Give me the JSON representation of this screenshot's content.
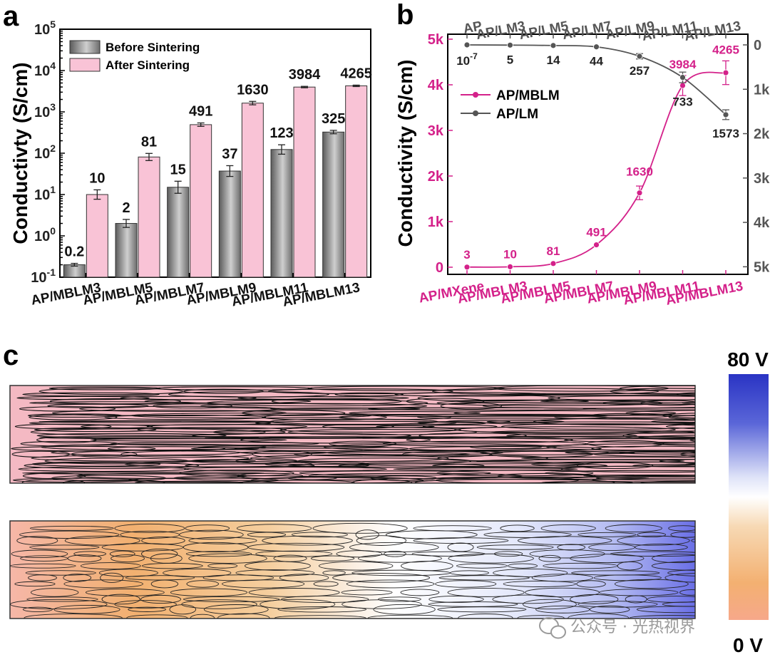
{
  "panels": {
    "a": "a",
    "b": "b",
    "c": "c"
  },
  "chart_data": [
    {
      "panel": "a",
      "type": "bar",
      "yscale": "log",
      "ylabel": "Conductivty (S/cm)",
      "ylim": [
        0.1,
        100000
      ],
      "yticks": [
        {
          "value": 0.1,
          "base": "10",
          "exp": "-1"
        },
        {
          "value": 1,
          "base": "10",
          "exp": "0"
        },
        {
          "value": 10,
          "base": "10",
          "exp": "1"
        },
        {
          "value": 100,
          "base": "10",
          "exp": "2"
        },
        {
          "value": 1000,
          "base": "10",
          "exp": "3"
        },
        {
          "value": 10000,
          "base": "10",
          "exp": "4"
        },
        {
          "value": 100000,
          "base": "10",
          "exp": "5"
        }
      ],
      "categories": [
        "AP/MBLM3",
        "AP/MBLM5",
        "AP/MBLM7",
        "AP/MBLM9",
        "AP/MBLM11",
        "AP/MBLM13"
      ],
      "series": [
        {
          "name": "Before Sintering",
          "color": "#8a8a8a",
          "values": [
            0.2,
            2,
            15,
            37,
            123,
            325
          ],
          "labels": [
            "0.2",
            "2",
            "15",
            "37",
            "123",
            "325"
          ],
          "err_factor": [
            1.08,
            1.25,
            1.4,
            1.35,
            1.3,
            1.1
          ]
        },
        {
          "name": "After Sintering",
          "color": "#f9c3d6",
          "values": [
            10,
            81,
            491,
            1630,
            3984,
            4265
          ],
          "labels": [
            "10",
            "81",
            "491",
            "1630",
            "3984",
            "4265"
          ],
          "err_factor": [
            1.3,
            1.22,
            1.1,
            1.1,
            1.04,
            1.04
          ]
        }
      ],
      "legend_position": "top-left"
    },
    {
      "panel": "b",
      "type": "line",
      "ylabel": "Conductivity (S/cm)",
      "left_axis": {
        "range": [
          0,
          5000
        ],
        "ticks": [
          "0",
          "1k",
          "2k",
          "3k",
          "4k",
          "5k"
        ],
        "color": "#d4218a"
      },
      "right_axis": {
        "range": [
          5000,
          0
        ],
        "ticks": [
          "0",
          "1k",
          "2k",
          "3k",
          "4k",
          "5k"
        ],
        "color": "#555555"
      },
      "bottom_categories": [
        "AP/MXene",
        "AP/MBLM3",
        "AP/MBLM5",
        "AP/MBLM7",
        "AP/MBLM9",
        "AP/MBLM11",
        "AP/MBLM13"
      ],
      "top_categories": [
        "AP",
        "AP/LM3",
        "AP/LM5",
        "AP/LM7",
        "AP/LM9",
        "AP/LM11",
        "AP/LM13"
      ],
      "series": [
        {
          "name": "AP/MBLM",
          "axis": "left",
          "color": "#d4218a",
          "values": [
            3,
            10,
            81,
            491,
            1630,
            3984,
            4265
          ],
          "labels": [
            "3",
            "10",
            "81",
            "491",
            "1630",
            "3984",
            "4265"
          ],
          "err": [
            0,
            0,
            0,
            0,
            150,
            220,
            260
          ]
        },
        {
          "name": "AP/LM",
          "axis": "right",
          "color": "#555555",
          "values": [
            1e-07,
            5,
            14,
            44,
            257,
            733,
            1573
          ],
          "labels": [
            "10",
            "5",
            "14",
            "44",
            "257",
            "733",
            "1573"
          ],
          "label_sup": [
            "-7",
            "",
            "",
            "",
            "",
            "",
            ""
          ],
          "err": [
            0,
            0,
            0,
            0,
            60,
            120,
            110
          ]
        }
      ],
      "legend_position": "center-left"
    }
  ],
  "panel_c": {
    "colorbar_top": "80 V",
    "colorbar_bottom": "0 V",
    "colors": {
      "low": "#f6b7a4",
      "mid_low": "#f2b474",
      "mid": "#ffffff",
      "high": "#2f36c9",
      "uniform": "#f4b9c3"
    }
  },
  "watermark": "公众号 · 光热视界"
}
